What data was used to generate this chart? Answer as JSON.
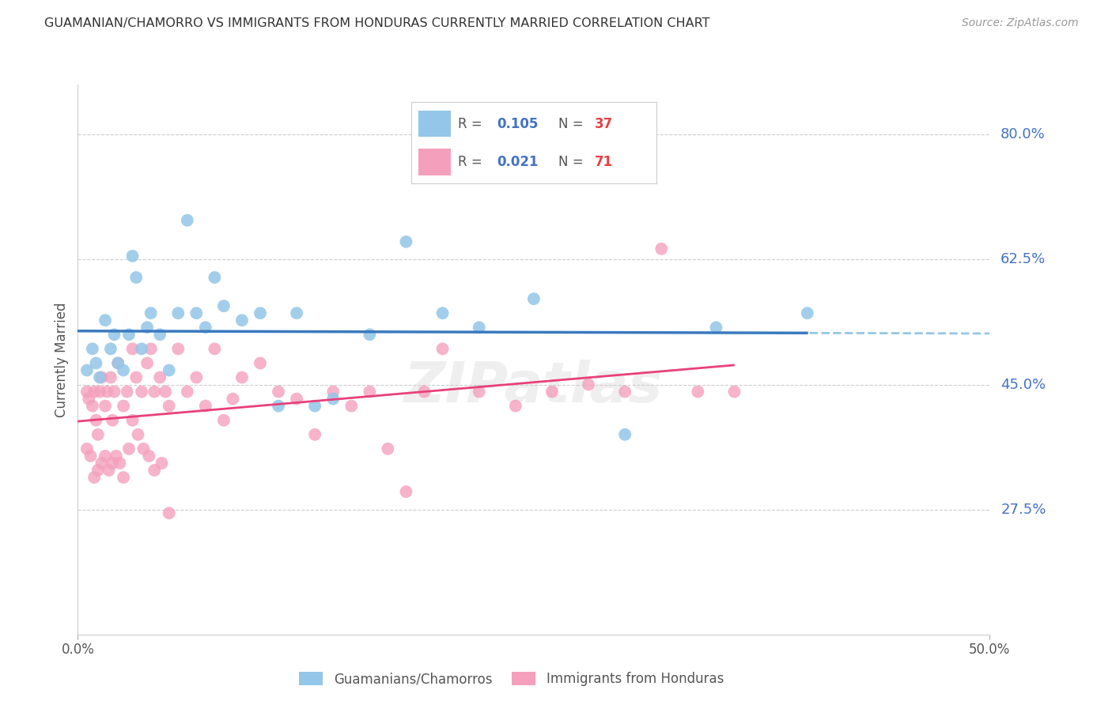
{
  "title": "GUAMANIAN/CHAMORRO VS IMMIGRANTS FROM HONDURAS CURRENTLY MARRIED CORRELATION CHART",
  "source": "Source: ZipAtlas.com",
  "ylabel": "Currently Married",
  "y_tick_labels": [
    "80.0%",
    "62.5%",
    "45.0%",
    "27.5%"
  ],
  "y_tick_values": [
    0.8,
    0.625,
    0.45,
    0.275
  ],
  "x_min": 0.0,
  "x_max": 0.5,
  "y_min": 0.1,
  "y_max": 0.87,
  "blue_color": "#93c6e8",
  "pink_color": "#f4a0bc",
  "blue_line_color": "#3a7abf",
  "pink_line_color": "#e8417a",
  "dashed_line_color": "#93c6e8",
  "label_blue": "Guamanians/Chamorros",
  "label_pink": "Immigrants from Honduras",
  "blue_r": 0.105,
  "blue_n": 37,
  "pink_r": 0.021,
  "pink_n": 71,
  "blue_scatter_x": [
    0.005,
    0.008,
    0.01,
    0.012,
    0.015,
    0.018,
    0.02,
    0.022,
    0.025,
    0.028,
    0.03,
    0.032,
    0.035,
    0.038,
    0.04,
    0.045,
    0.05,
    0.055,
    0.06,
    0.065,
    0.07,
    0.075,
    0.08,
    0.09,
    0.1,
    0.11,
    0.12,
    0.13,
    0.14,
    0.16,
    0.18,
    0.2,
    0.22,
    0.25,
    0.3,
    0.35,
    0.4
  ],
  "blue_scatter_y": [
    0.47,
    0.5,
    0.48,
    0.46,
    0.54,
    0.5,
    0.52,
    0.48,
    0.47,
    0.52,
    0.63,
    0.6,
    0.5,
    0.53,
    0.55,
    0.52,
    0.47,
    0.55,
    0.68,
    0.55,
    0.53,
    0.6,
    0.56,
    0.54,
    0.55,
    0.42,
    0.55,
    0.42,
    0.43,
    0.52,
    0.65,
    0.55,
    0.53,
    0.57,
    0.38,
    0.53,
    0.55
  ],
  "pink_scatter_x": [
    0.005,
    0.006,
    0.008,
    0.009,
    0.01,
    0.011,
    0.012,
    0.013,
    0.015,
    0.016,
    0.018,
    0.019,
    0.02,
    0.022,
    0.025,
    0.027,
    0.03,
    0.032,
    0.035,
    0.038,
    0.04,
    0.042,
    0.045,
    0.048,
    0.05,
    0.055,
    0.06,
    0.065,
    0.07,
    0.075,
    0.08,
    0.085,
    0.09,
    0.1,
    0.11,
    0.12,
    0.13,
    0.14,
    0.15,
    0.16,
    0.17,
    0.18,
    0.19,
    0.2,
    0.22,
    0.24,
    0.26,
    0.28,
    0.3,
    0.32,
    0.34,
    0.36,
    0.005,
    0.007,
    0.009,
    0.011,
    0.013,
    0.015,
    0.017,
    0.019,
    0.021,
    0.023,
    0.025,
    0.028,
    0.03,
    0.033,
    0.036,
    0.039,
    0.042,
    0.046,
    0.05
  ],
  "pink_scatter_y": [
    0.44,
    0.43,
    0.42,
    0.44,
    0.4,
    0.38,
    0.44,
    0.46,
    0.42,
    0.44,
    0.46,
    0.4,
    0.44,
    0.48,
    0.42,
    0.44,
    0.5,
    0.46,
    0.44,
    0.48,
    0.5,
    0.44,
    0.46,
    0.44,
    0.42,
    0.5,
    0.44,
    0.46,
    0.42,
    0.5,
    0.4,
    0.43,
    0.46,
    0.48,
    0.44,
    0.43,
    0.38,
    0.44,
    0.42,
    0.44,
    0.36,
    0.3,
    0.44,
    0.5,
    0.44,
    0.42,
    0.44,
    0.45,
    0.44,
    0.64,
    0.44,
    0.44,
    0.36,
    0.35,
    0.32,
    0.33,
    0.34,
    0.35,
    0.33,
    0.34,
    0.35,
    0.34,
    0.32,
    0.36,
    0.4,
    0.38,
    0.36,
    0.35,
    0.33,
    0.34,
    0.27
  ]
}
